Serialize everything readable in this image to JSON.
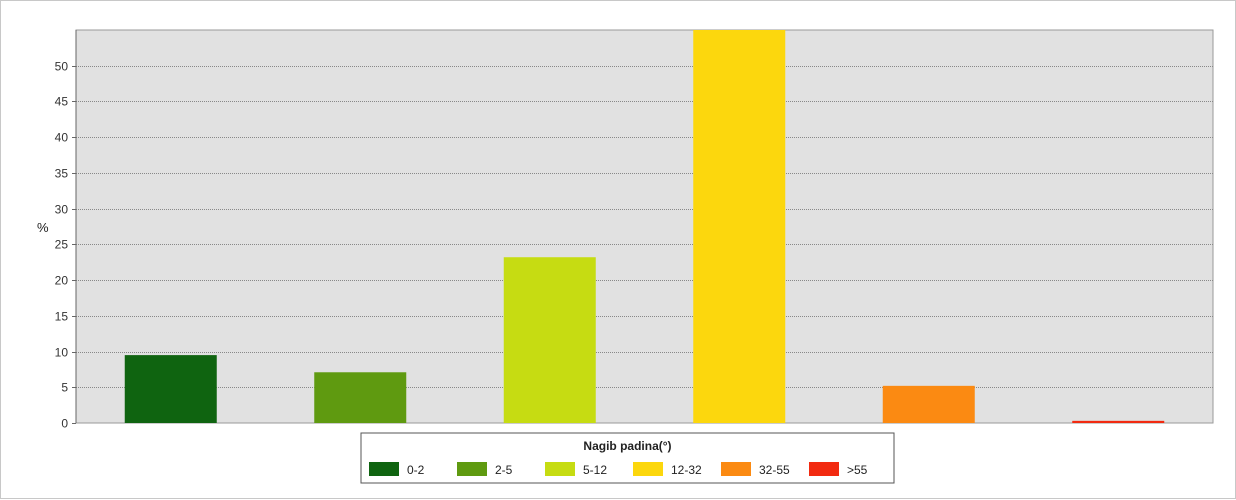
{
  "chart_data": {
    "type": "bar",
    "title": "",
    "ylabel": "%",
    "xlabel": "",
    "ylim": [
      0,
      55
    ],
    "yticks": [
      0,
      5,
      10,
      15,
      20,
      25,
      30,
      35,
      40,
      45,
      50
    ],
    "grid": true,
    "legend_title": "Nagib padina(°)",
    "legend_position": "bottom-center",
    "categories": [
      "0-2",
      "2-5",
      "5-12",
      "12-32",
      "32-55",
      ">55"
    ],
    "values": [
      9.5,
      7.1,
      23.2,
      55.0,
      5.2,
      0.3
    ],
    "colors": [
      "#0f6410",
      "#5f9a10",
      "#c6dc12",
      "#fcd70d",
      "#fb8a12",
      "#f22a10"
    ],
    "plot_background": "#e1e1e1",
    "grid_color": "#888888"
  }
}
